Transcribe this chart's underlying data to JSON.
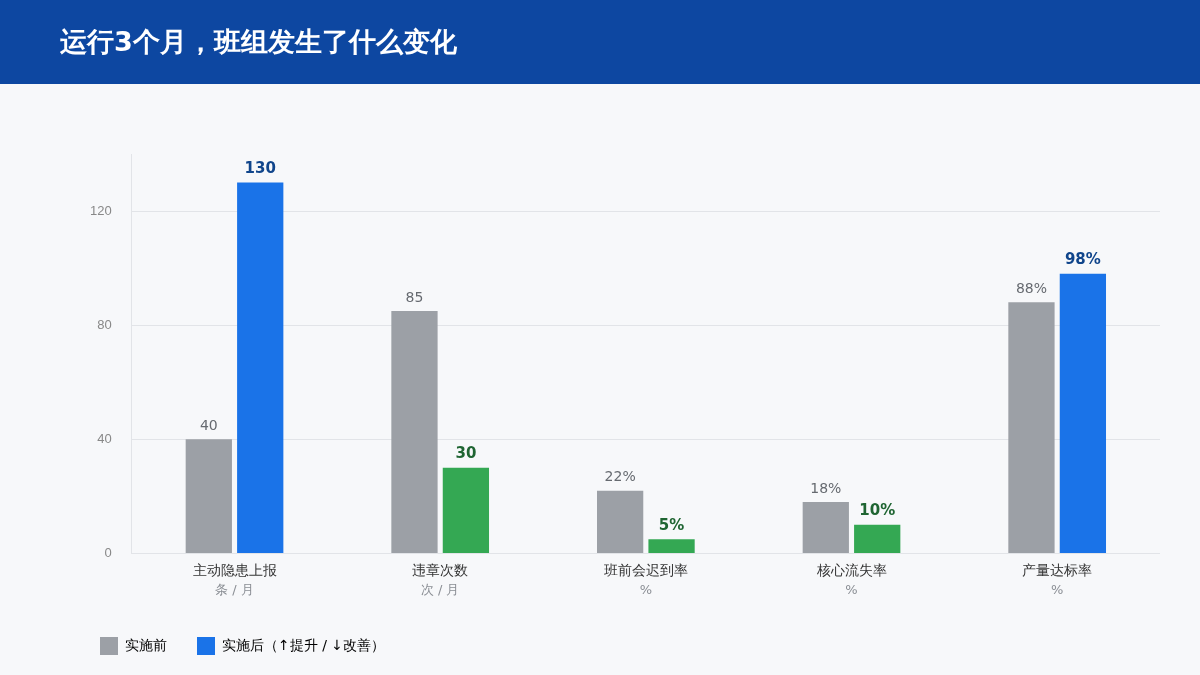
{
  "chart_data": {
    "type": "bar",
    "title": "运行3个月，班组发生了什么变化",
    "categories": [
      "主动隐患上报",
      "违章次数",
      "班前会迟到率",
      "核心流失率",
      "产量达标率"
    ],
    "annotations": [
      "条 / 月",
      "次 / 月",
      "%",
      "%",
      "%"
    ],
    "series": [
      {
        "name": "实施前",
        "color": "#9ca0a6",
        "values": [
          40,
          85,
          22,
          18,
          88
        ],
        "value_labels": [
          "40",
          "85",
          "22%",
          "18%",
          "88%"
        ]
      },
      {
        "name": "实施后（↑提升 / ↓改善）",
        "colors": [
          "#1a73e8",
          "#34a853",
          "#34a853",
          "#34a853",
          "#1a73e8"
        ],
        "values": [
          130,
          30,
          5,
          10,
          98
        ],
        "value_labels": [
          "130",
          "30",
          "5%",
          "10%",
          "98%"
        ]
      }
    ],
    "ylim": [
      0,
      140
    ],
    "yticks": [
      0,
      40,
      80,
      120
    ],
    "grid": "y",
    "legend": "bottom left"
  }
}
